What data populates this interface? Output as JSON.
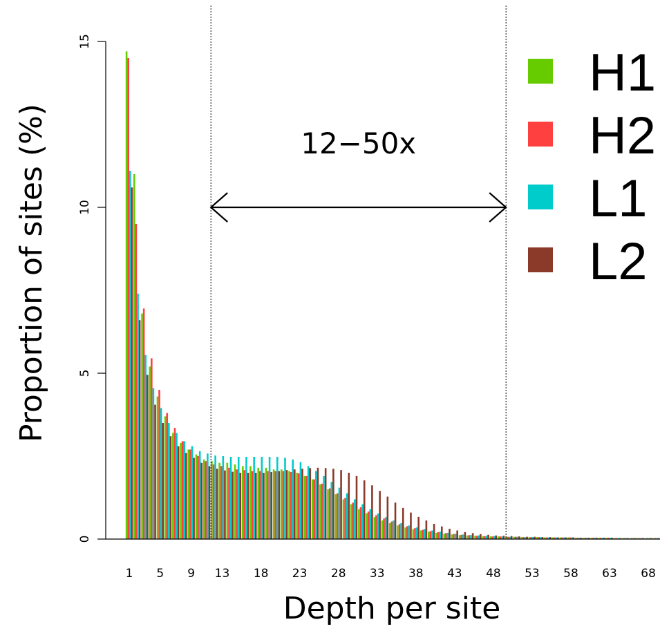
{
  "chart_data": {
    "type": "bar",
    "xlabel": "Depth per site",
    "ylabel": "Proportion of sites (%)",
    "ylim": [
      0,
      15
    ],
    "y_ticks": [
      0,
      5,
      10,
      15
    ],
    "x_ticks": [
      1,
      5,
      9,
      13,
      18,
      23,
      28,
      33,
      38,
      43,
      48,
      53,
      58,
      63,
      68
    ],
    "x_range": [
      1,
      70
    ],
    "colors": {
      "H1": "#66cc00",
      "H2": "#ff4040",
      "L1": "#00cccc",
      "L2": "#8b3a2a"
    },
    "annotation": {
      "label": "12−50x",
      "from": 12,
      "to": 50,
      "y": 10
    },
    "legend_position": "top-right",
    "series": [
      {
        "name": "H1",
        "values": [
          14.7,
          11.0,
          6.8,
          5.2,
          4.3,
          3.7,
          3.2,
          2.9,
          2.7,
          2.55,
          2.4,
          2.35,
          2.3,
          2.3,
          2.25,
          2.2,
          2.2,
          2.15,
          2.15,
          2.1,
          2.1,
          2.05,
          2.0,
          1.9,
          1.8,
          1.65,
          1.5,
          1.35,
          1.2,
          1.05,
          0.9,
          0.78,
          0.66,
          0.56,
          0.48,
          0.41,
          0.35,
          0.3,
          0.26,
          0.22,
          0.19,
          0.16,
          0.14,
          0.12,
          0.11,
          0.1,
          0.09,
          0.08,
          0.08,
          0.07,
          0.07,
          0.06,
          0.06,
          0.06,
          0.05,
          0.05,
          0.05,
          0.05,
          0.04,
          0.04,
          0.04,
          0.04,
          0.04,
          0.03,
          0.03,
          0.03,
          0.03,
          0.03,
          0.03,
          0.03
        ]
      },
      {
        "name": "H2",
        "values": [
          14.5,
          9.5,
          6.95,
          5.45,
          4.5,
          3.8,
          3.35,
          2.95,
          2.7,
          2.5,
          2.35,
          2.25,
          2.2,
          2.15,
          2.1,
          2.08,
          2.05,
          2.05,
          2.05,
          2.05,
          2.05,
          2.02,
          1.98,
          1.9,
          1.8,
          1.67,
          1.53,
          1.38,
          1.24,
          1.1,
          0.96,
          0.83,
          0.72,
          0.62,
          0.53,
          0.45,
          0.39,
          0.33,
          0.28,
          0.24,
          0.21,
          0.18,
          0.15,
          0.13,
          0.12,
          0.1,
          0.09,
          0.08,
          0.08,
          0.07,
          0.07,
          0.06,
          0.06,
          0.06,
          0.05,
          0.05,
          0.05,
          0.05,
          0.04,
          0.04,
          0.04,
          0.04,
          0.04,
          0.03,
          0.03,
          0.03,
          0.03,
          0.03,
          0.03,
          0.03
        ]
      },
      {
        "name": "L1",
        "values": [
          11.1,
          7.4,
          5.55,
          4.55,
          3.95,
          3.5,
          3.2,
          2.95,
          2.8,
          2.65,
          2.58,
          2.52,
          2.5,
          2.48,
          2.48,
          2.48,
          2.48,
          2.48,
          2.48,
          2.48,
          2.45,
          2.4,
          2.32,
          2.2,
          2.05,
          1.9,
          1.72,
          1.55,
          1.38,
          1.2,
          1.05,
          0.9,
          0.77,
          0.66,
          0.56,
          0.48,
          0.41,
          0.35,
          0.3,
          0.26,
          0.22,
          0.19,
          0.16,
          0.14,
          0.12,
          0.11,
          0.1,
          0.09,
          0.08,
          0.07,
          0.07,
          0.06,
          0.06,
          0.06,
          0.05,
          0.05,
          0.05,
          0.05,
          0.04,
          0.04,
          0.04,
          0.04,
          0.04,
          0.03,
          0.03,
          0.03,
          0.03,
          0.03,
          0.03,
          0.03
        ]
      },
      {
        "name": "L2",
        "values": [
          10.6,
          6.6,
          4.95,
          4.05,
          3.5,
          3.1,
          2.8,
          2.6,
          2.45,
          2.3,
          2.2,
          2.12,
          2.07,
          2.03,
          2.0,
          2.0,
          2.0,
          2.0,
          2.02,
          2.05,
          2.08,
          2.1,
          2.12,
          2.14,
          2.15,
          2.14,
          2.12,
          2.08,
          2.0,
          1.9,
          1.77,
          1.62,
          1.45,
          1.28,
          1.1,
          0.94,
          0.8,
          0.67,
          0.56,
          0.46,
          0.38,
          0.31,
          0.26,
          0.21,
          0.18,
          0.15,
          0.13,
          0.11,
          0.1,
          0.09,
          0.08,
          0.07,
          0.07,
          0.06,
          0.06,
          0.05,
          0.05,
          0.05,
          0.04,
          0.04,
          0.04,
          0.04,
          0.04,
          0.03,
          0.03,
          0.03,
          0.03,
          0.03,
          0.03,
          0.03
        ]
      }
    ]
  }
}
